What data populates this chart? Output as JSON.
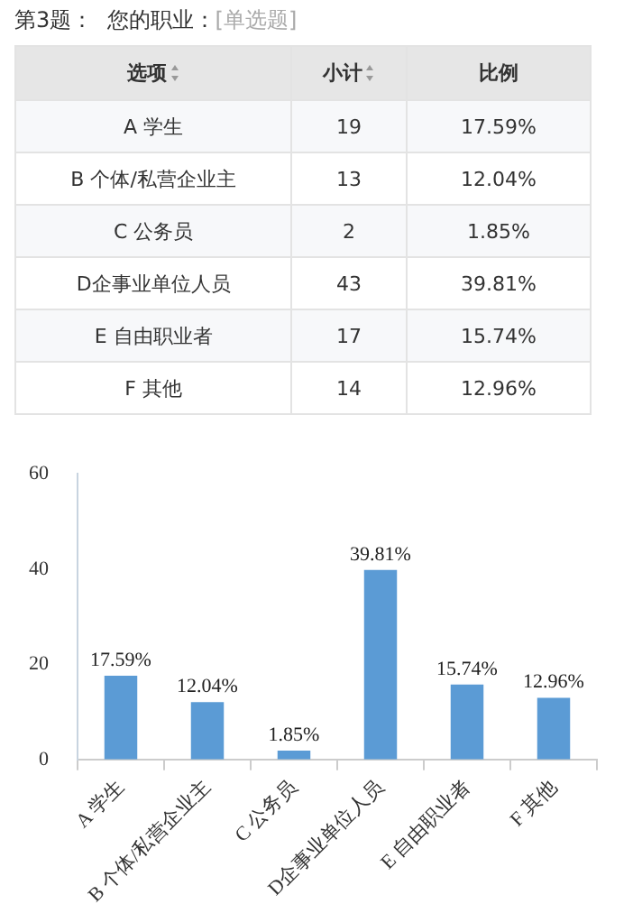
{
  "chart_data": [
    {
      "type": "other",
      "title": "第3题：  您的职业：",
      "subtitle": "[单选题]",
      "annotations": [
        "选项",
        "小计",
        "比例",
        "A 学生",
        "19",
        "17.59%",
        "B 个体/私营企业主",
        "13",
        "12.04%",
        "C 公务员",
        "2",
        "1.85%",
        "D企事业单位人员",
        "43",
        "39.81%",
        "E 自由职业者",
        "17",
        "15.74%",
        "F 其他",
        "14",
        "12.96%"
      ]
    },
    {
      "type": "bar",
      "categories": [
        "A 学生",
        "B 个体/私营企业主",
        "C 公务员",
        "D企事业单位人员",
        "E 自由职业者",
        "F 其他"
      ],
      "values": [
        17.59,
        12.04,
        1.85,
        39.81,
        15.74,
        12.96
      ],
      "value_labels": [
        "17.59%",
        "12.04%",
        "1.85%",
        "39.81%",
        "15.74%",
        "12.96%"
      ],
      "color": "#5b9bd5",
      "ylim": [
        0,
        60
      ],
      "yticks": [
        0,
        20,
        40,
        60
      ],
      "grid": false,
      "legend": false
    }
  ]
}
